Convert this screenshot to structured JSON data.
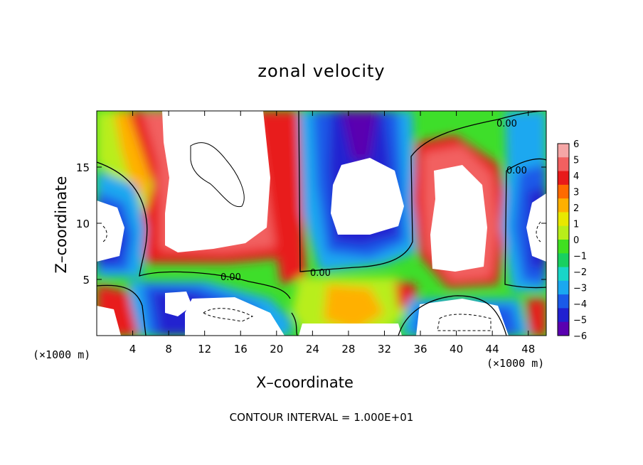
{
  "chart_data": {
    "type": "heatmap",
    "title": "zonal velocity",
    "xlabel": "X–coordinate",
    "ylabel": "Z–coordinate",
    "x_unit_left": "(×1000 m)",
    "x_unit_right": "(×1000 m)",
    "xlim": [
      0,
      50
    ],
    "ylim": [
      0,
      20
    ],
    "x_ticks": [
      "4",
      "8",
      "12",
      "16",
      "20",
      "24",
      "28",
      "32",
      "36",
      "40",
      "44",
      "48"
    ],
    "y_ticks": [
      "5",
      "10",
      "15"
    ],
    "colorbar": {
      "ticks": [
        "6",
        "5",
        "4",
        "3",
        "2",
        "1",
        "0",
        "−1",
        "−2",
        "−3",
        "−4",
        "−5",
        "−6"
      ],
      "colors": [
        "#f5a6a6",
        "#f26060",
        "#e81a1a",
        "#ff6a00",
        "#ffb000",
        "#e8e800",
        "#b8ee1a",
        "#40e020",
        "#18d060",
        "#18d6c8",
        "#1aa8f0",
        "#1a5ae8",
        "#2020d0",
        "#5a00b0"
      ]
    },
    "contour_labels": [
      "0.00",
      "0.00",
      "0.00",
      "0.00"
    ],
    "footer": "CONTOUR INTERVAL = 1.000E+01"
  }
}
